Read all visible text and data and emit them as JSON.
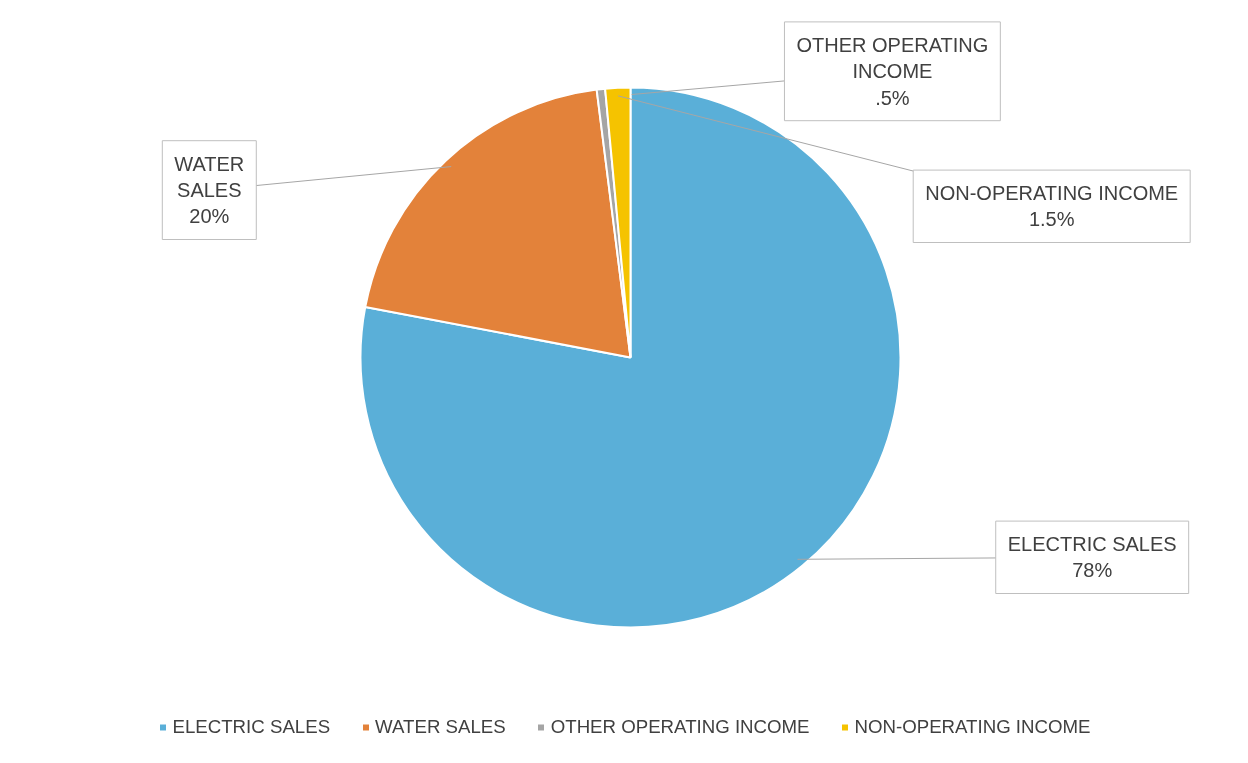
{
  "chart_data": {
    "type": "pie",
    "categories": [
      "ELECTRIC SALES",
      "WATER SALES",
      "OTHER OPERATING INCOME",
      "NON-OPERATING INCOME"
    ],
    "values": [
      78,
      20,
      0.5,
      1.5
    ],
    "colors": [
      "#5aafd8",
      "#e3823a",
      "#a5a5a5",
      "#f5c300"
    ],
    "value_labels": [
      "78%",
      "20%",
      ".5%",
      "1.5%"
    ],
    "legend": "bottom"
  }
}
